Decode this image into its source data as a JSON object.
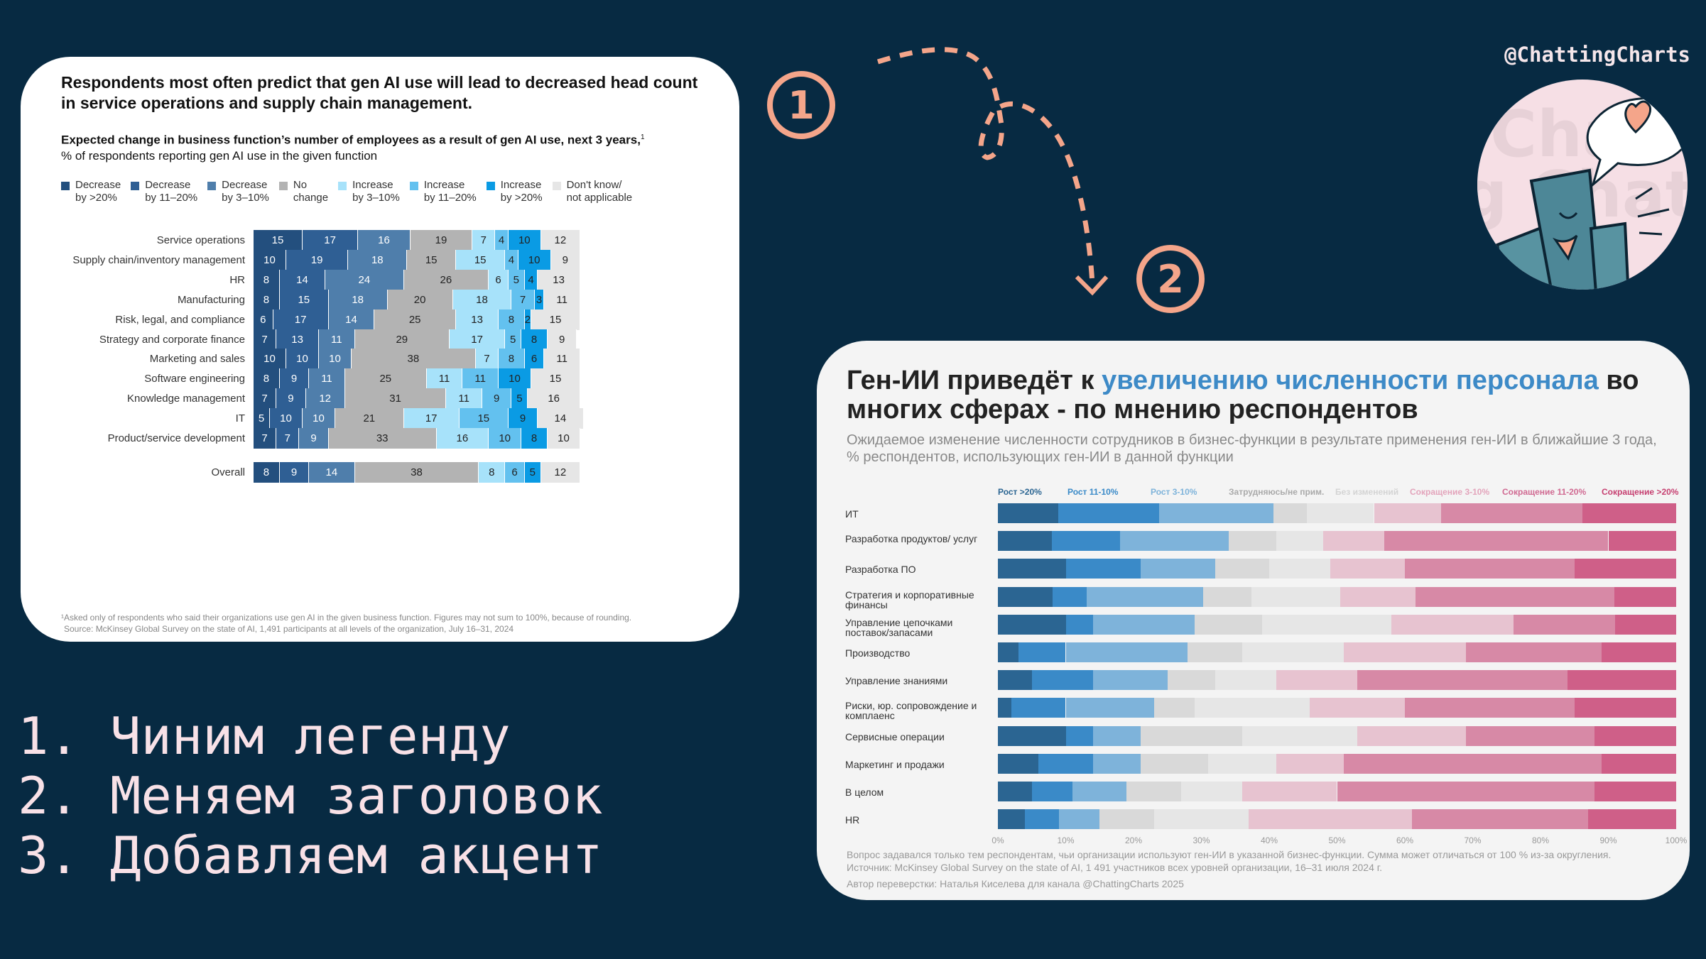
{
  "handle": "@ChattingCharts",
  "steps": [
    "1. Чиним легенду",
    "2. Меняем заголовок",
    "3. Добавляем акцент"
  ],
  "badges": [
    "1",
    "2"
  ],
  "colors": {
    "background": "#072a42",
    "accent_orange": "#f4a58a",
    "title_accent_blue": "#3d8ac7"
  },
  "chart_data": [
    {
      "type": "bar",
      "stacked": true,
      "orientation": "horizontal",
      "title": "Respondents most often predict that gen AI use will lead to decreased head count in service operations and supply chain management.",
      "subtitle_bold": "Expected change in business function’s number of employees as a result of gen AI use, next 3 years,",
      "subtitle_sup": "1",
      "subtitle": "% of respondents reporting gen AI use in the given function",
      "xlim": [
        0,
        100
      ],
      "legend_position": "top",
      "categories": [
        "Service operations",
        "Supply chain/inventory management",
        "HR",
        "Manufacturing",
        "Risk, legal, and compliance",
        "Strategy and corporate finance",
        "Marketing and sales",
        "Software engineering",
        "Knowledge management",
        "IT",
        "Product/service development",
        "Overall"
      ],
      "series": [
        {
          "name": "Decrease\nby >20%",
          "color": "#234f7e",
          "label_color": "#ffffff",
          "values": [
            15,
            10,
            8,
            8,
            6,
            7,
            10,
            8,
            7,
            5,
            7,
            8
          ]
        },
        {
          "name": "Decrease\nby 11–20%",
          "color": "#2f5f94",
          "label_color": "#ffffff",
          "values": [
            17,
            19,
            14,
            15,
            17,
            13,
            10,
            9,
            9,
            10,
            7,
            9
          ]
        },
        {
          "name": "Decrease\nby 3–10%",
          "color": "#4f7eab",
          "label_color": "#ffffff",
          "values": [
            16,
            18,
            24,
            18,
            14,
            11,
            10,
            11,
            12,
            10,
            9,
            14
          ]
        },
        {
          "name": "No\nchange",
          "color": "#b3b3b3",
          "label_color": "#222222",
          "values": [
            19,
            15,
            26,
            20,
            25,
            29,
            38,
            25,
            31,
            21,
            33,
            38
          ]
        },
        {
          "name": "Increase\nby 3–10%",
          "color": "#a7e2fa",
          "label_color": "#222222",
          "values": [
            7,
            15,
            6,
            18,
            13,
            17,
            7,
            11,
            11,
            17,
            16,
            8
          ]
        },
        {
          "name": "Increase\nby 11–20%",
          "color": "#63c1ef",
          "label_color": "#222222",
          "values": [
            4,
            4,
            5,
            7,
            8,
            5,
            8,
            11,
            9,
            15,
            10,
            6
          ]
        },
        {
          "name": "Increase\nby >20%",
          "color": "#0a9be4",
          "label_color": "#222222",
          "values": [
            10,
            10,
            4,
            3,
            2,
            8,
            6,
            10,
            5,
            9,
            8,
            5
          ]
        },
        {
          "name": "Don't know/\nnot applicable",
          "color": "#e6e6e6",
          "label_color": "#222222",
          "values": [
            12,
            9,
            13,
            11,
            15,
            9,
            11,
            15,
            16,
            14,
            10,
            12
          ]
        }
      ],
      "footnote": [
        "¹Asked only of respondents who said their organizations use gen AI in the given business function. Figures may not sum to 100%, because of rounding.",
        "Source: McKinsey Global Survey on the state of AI, 1,491 participants at all levels of the organization, July 16–31, 2024"
      ]
    },
    {
      "type": "bar",
      "stacked": true,
      "orientation": "horizontal",
      "title_part1": "Ген-ИИ приведёт к ",
      "title_accent": "увеличению численности персонала",
      "title_part2": " во многих сферах - по мнению респондентов",
      "subtitle": "Ожидаемое изменение численности сотрудников в бизнес-функции в результате применения ген-ИИ в ближайшие 3 года, % респондентов, использующих ген-ИИ в данной функции",
      "xlim": [
        0,
        100
      ],
      "x_ticks": [
        "0%",
        "10%",
        "20%",
        "30%",
        "40%",
        "50%",
        "60%",
        "70%",
        "80%",
        "90%",
        "100%"
      ],
      "legend_position": "top",
      "categories": [
        "ИТ",
        "Разработка продуктов/ услуг",
        "Разработка ПО",
        "Стратегия и корпоративные финансы",
        "Управление цепочками поставок/запасами",
        "Производство",
        "Управление знаниями",
        "Риски, юр. сопровождение и комплаенс",
        "Сервисные операции",
        "Маркетинг и продажи",
        "В целом",
        "HR"
      ],
      "series": [
        {
          "name": "Рост >20%",
          "color": "#2b6592",
          "label_color": "#2b6592",
          "values": [
            9,
            8,
            10,
            8,
            10,
            3,
            5,
            2,
            10,
            6,
            5,
            4
          ]
        },
        {
          "name": "Рост 11-10%",
          "color": "#3a8ac8",
          "label_color": "#3a8ac8",
          "values": [
            15,
            10,
            11,
            5,
            4,
            7,
            9,
            8,
            4,
            8,
            6,
            5
          ]
        },
        {
          "name": "Рост 3-10%",
          "color": "#7eb3da",
          "label_color": "#7eb3da",
          "values": [
            17,
            16,
            11,
            17,
            15,
            18,
            11,
            13,
            7,
            7,
            8,
            6
          ]
        },
        {
          "name": "Затрудняюсь/не прим.",
          "color": "#d9d9d9",
          "label_color": "#aaaaaa",
          "values": [
            5,
            7,
            8,
            7,
            10,
            8,
            7,
            6,
            15,
            10,
            8,
            8
          ]
        },
        {
          "name": "Без изменений",
          "color": "#e6e6e6",
          "label_color": "#d4d4d4",
          "values": [
            10,
            7,
            9,
            13,
            19,
            15,
            9,
            17,
            17,
            10,
            9,
            14
          ]
        },
        {
          "name": "Сокращение 3-10%",
          "color": "#e7c3d0",
          "label_color": "#e3a4bb",
          "values": [
            10,
            9,
            11,
            11,
            18,
            18,
            12,
            14,
            16,
            10,
            14,
            24
          ]
        },
        {
          "name": "Сокращение 11-20%",
          "color": "#d789a6",
          "label_color": "#d06a92",
          "values": [
            21,
            33,
            25,
            29,
            15,
            20,
            31,
            25,
            19,
            38,
            38,
            26
          ]
        },
        {
          "name": "Сокращение >20%",
          "color": "#cf5f88",
          "label_color": "#c63f70",
          "values": [
            14,
            10,
            15,
            9,
            9,
            11,
            16,
            15,
            12,
            11,
            12,
            13
          ]
        }
      ],
      "footnote": [
        "Вопрос задавался только тем респондентам, чьи организации используют ген-ИИ в указанной бизнес-функции. Сумма может отличаться от 100 % из-за округления.",
        "Источник: McKinsey Global Survey on the state of AI, 1 491 участников всех уровней организации, 16–31 июля 2024 г."
      ],
      "author": "Автор переверстки: Наталья Киселева для канала @ChattingCharts 2025"
    }
  ]
}
